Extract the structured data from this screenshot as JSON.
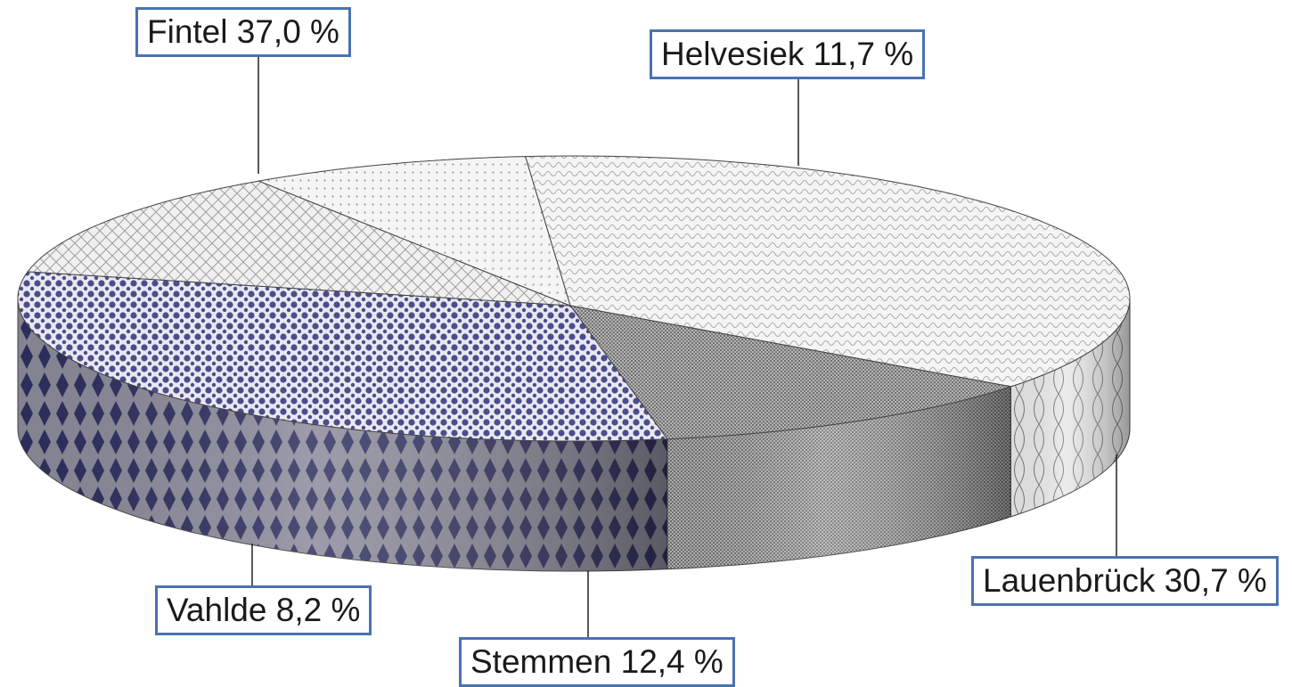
{
  "chart_data": {
    "type": "pie",
    "style": "3d",
    "title": "",
    "categories": [
      "Fintel",
      "Helvesiek",
      "Lauenbrück",
      "Stemmen",
      "Vahlde"
    ],
    "values": [
      37.0,
      11.7,
      30.7,
      12.4,
      8.2
    ],
    "labels": [
      "Fintel 37,0 %",
      "Helvesiek 11,7 %",
      "Lauenbrück 30,7 %",
      "Stemmen 12,4 %",
      "Vahlde 8,2 %"
    ],
    "unit": "%"
  },
  "colors": {
    "label_border": "#4a72b0",
    "lauenbrueck_fill": "#4b4d8c",
    "helvesiek_fill": "#8c8c8c"
  }
}
